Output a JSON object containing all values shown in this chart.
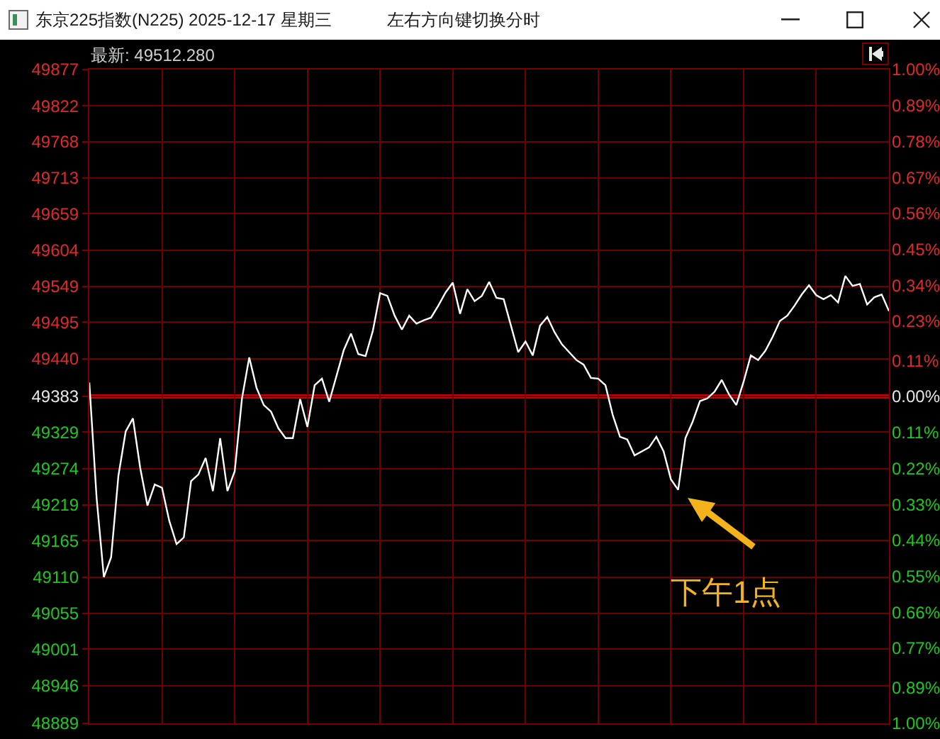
{
  "chart_data": {
    "type": "line",
    "title": "东京225指数(N225) 2025-12-17 星期三",
    "subtitle": "左右方向键切换分时",
    "annotations": [
      "最新: 49512.280",
      "下午1点"
    ],
    "categories": [
      null,
      null,
      null,
      null,
      null,
      null,
      null,
      null,
      null,
      null,
      null,
      null,
      null,
      null,
      null,
      null,
      null,
      null,
      null,
      null,
      null,
      null,
      null,
      null,
      null,
      null,
      null,
      null,
      null,
      null,
      null,
      null,
      null,
      null,
      null,
      null,
      null,
      null,
      null,
      null,
      null,
      null,
      null,
      null,
      null,
      null,
      null,
      null,
      null,
      null,
      null,
      null,
      null,
      null,
      null,
      null,
      null,
      null,
      null,
      null,
      null,
      null,
      null,
      null,
      null,
      null,
      null,
      null,
      null,
      null,
      null,
      null,
      null,
      null,
      null,
      null,
      null,
      null,
      null,
      null,
      null,
      null,
      null,
      null,
      null,
      null,
      null,
      null,
      null,
      null,
      null,
      null,
      null,
      null,
      null,
      null,
      null,
      null,
      null,
      null,
      null,
      null,
      null,
      null,
      null,
      null,
      null,
      null,
      null,
      null,
      null
    ],
    "series": [
      {
        "color": "#ffffff",
        "values": [
          49404,
          49230,
          49110,
          49140,
          49263,
          49330,
          49350,
          49275,
          49218,
          49250,
          49245,
          49195,
          49160,
          49170,
          49255,
          49265,
          49290,
          49240,
          49320,
          49240,
          49270,
          49380,
          49442,
          49396,
          49370,
          49360,
          49335,
          49320,
          49320,
          49379,
          49337,
          49400,
          49410,
          49375,
          49414,
          49453,
          49478,
          49447,
          49444,
          49482,
          49539,
          49535,
          49505,
          49484,
          49505,
          49493,
          49498,
          49502,
          49520,
          49540,
          49555,
          49508,
          49545,
          49527,
          49535,
          49556,
          49532,
          49530,
          49490,
          49450,
          49466,
          49445,
          49490,
          49503,
          49480,
          49462,
          49450,
          49438,
          49431,
          49411,
          49410,
          49400,
          49355,
          49322,
          49318,
          49294,
          49300,
          49306,
          49322,
          49300,
          49258,
          49242,
          49320,
          49345,
          49376,
          49380,
          49390,
          49408,
          49386,
          49370,
          49405,
          49445,
          49438,
          49452,
          49473,
          49497,
          49505,
          49520,
          49537,
          49551,
          49536,
          49530,
          49536,
          49525,
          49565,
          49550,
          49553,
          49522,
          49533,
          49537,
          49512
        ]
      }
    ],
    "ylim": [
      48889,
      49877
    ],
    "yticks": [
      48889,
      48946,
      49001,
      49055,
      49110,
      49165,
      49219,
      49274,
      49329,
      49383,
      49440,
      49495,
      49549,
      49604,
      49659,
      49713,
      49768,
      49822,
      49877
    ],
    "y2lim": [
      -1,
      1
    ],
    "y2ticks": [
      {
        "value": -1,
        "label": "1.00%"
      },
      {
        "value": -0.89,
        "label": "0.89%"
      },
      {
        "value": -0.77,
        "label": "0.77%"
      },
      {
        "value": -0.66,
        "label": "0.66%"
      },
      {
        "value": -0.55,
        "label": "0.55%"
      },
      {
        "value": -0.44,
        "label": "0.44%"
      },
      {
        "value": -0.33,
        "label": "0.33%"
      },
      {
        "value": -0.22,
        "label": "0.22%"
      },
      {
        "value": -0.11,
        "label": "0.11%"
      },
      {
        "value": 0,
        "label": "0.00%"
      },
      {
        "value": 0.11,
        "label": "0.11%"
      },
      {
        "value": 0.23,
        "label": "0.23%"
      },
      {
        "value": 0.34,
        "label": "0.34%"
      },
      {
        "value": 0.45,
        "label": "0.45%"
      },
      {
        "value": 0.56,
        "label": "0.56%"
      },
      {
        "value": 0.67,
        "label": "0.67%"
      },
      {
        "value": 0.78,
        "label": "0.78%"
      },
      {
        "value": 0.89,
        "label": "0.89%"
      },
      {
        "value": 1,
        "label": "1.00%"
      }
    ],
    "ref_lines": [
      {
        "axis": "y",
        "value": 49383,
        "color": "#c80000"
      }
    ],
    "grid": true,
    "marker": "none",
    "line_style": "solid"
  }
}
